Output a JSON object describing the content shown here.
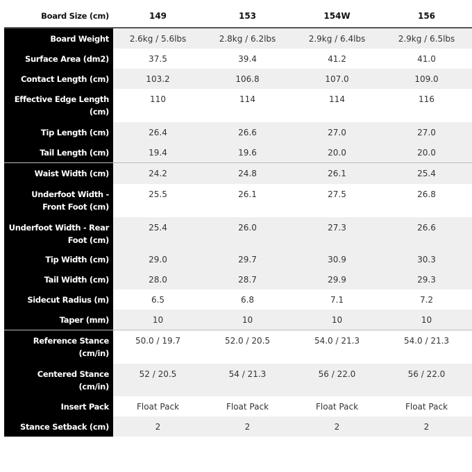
{
  "header": {
    "label": "Board Size (cm)",
    "sizes": [
      "149",
      "153",
      "154W",
      "156"
    ]
  },
  "rows": [
    {
      "label": "Board Weight",
      "values": [
        "2.6kg / 5.6lbs",
        "2.8kg / 6.2lbs",
        "2.9kg / 6.4lbs",
        "2.9kg / 6.5lbs"
      ]
    },
    {
      "label": "Surface Area (dm2)",
      "values": [
        "37.5",
        "39.4",
        "41.2",
        "41.0"
      ]
    },
    {
      "label": "Contact Length (cm)",
      "values": [
        "103.2",
        "106.8",
        "107.0",
        "109.0"
      ]
    },
    {
      "label": "Effective Edge Length (cm)",
      "values": [
        "110",
        "114",
        "114",
        "116"
      ]
    },
    {
      "label": "Tip Length (cm)",
      "values": [
        "26.4",
        "26.6",
        "27.0",
        "27.0"
      ]
    },
    {
      "label": "Tail Length (cm)",
      "values": [
        "19.4",
        "19.6",
        "20.0",
        "20.0"
      ]
    },
    {
      "label": "Waist Width (cm)",
      "values": [
        "24.2",
        "24.8",
        "26.1",
        "25.4"
      ]
    },
    {
      "label": "Underfoot Width - Front Foot (cm)",
      "values": [
        "25.5",
        "26.1",
        "27.5",
        "26.8"
      ]
    },
    {
      "label": "Underfoot Width - Rear Foot (cm)",
      "values": [
        "25.4",
        "26.0",
        "27.3",
        "26.6"
      ]
    },
    {
      "label": "Tip Width (cm)",
      "values": [
        "29.0",
        "29.7",
        "30.9",
        "30.3"
      ]
    },
    {
      "label": "Tail Width (cm)",
      "values": [
        "28.0",
        "28.7",
        "29.9",
        "29.3"
      ]
    },
    {
      "label": "Sidecut Radius (m)",
      "values": [
        "6.5",
        "6.8",
        "7.1",
        "7.2"
      ]
    },
    {
      "label": "Taper (mm)",
      "values": [
        "10",
        "10",
        "10",
        "10"
      ]
    },
    {
      "label": "Reference Stance (cm/in)",
      "values": [
        "50.0 / 19.7",
        "52.0 / 20.5",
        "54.0 / 21.3",
        "54.0 / 21.3"
      ]
    },
    {
      "label": "Centered Stance (cm/in)",
      "values": [
        "52 / 20.5",
        "54 / 21.3",
        "56 / 22.0",
        "56 / 22.0"
      ]
    },
    {
      "label": "Insert Pack",
      "values": [
        "Float Pack",
        "Float Pack",
        "Float Pack",
        "Float Pack"
      ]
    },
    {
      "label": "Stance Setback (cm)",
      "values": [
        "2",
        "2",
        "2",
        "2"
      ]
    }
  ]
}
